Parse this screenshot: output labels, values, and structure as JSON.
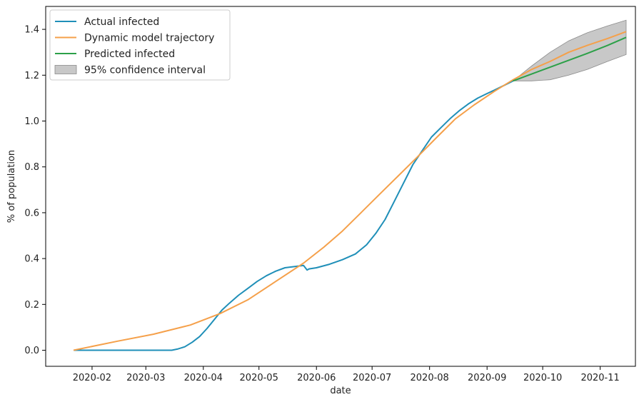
{
  "chart_data": {
    "type": "line",
    "xlabel": "date",
    "ylabel": "% of population",
    "xlim": [
      "2020-01-07",
      "2020-11-20"
    ],
    "ylim": [
      -0.07,
      1.5
    ],
    "grid": false,
    "legend_position": "top-left",
    "x_ticks": [
      "2020-02",
      "2020-03",
      "2020-04",
      "2020-05",
      "2020-06",
      "2020-07",
      "2020-08",
      "2020-09",
      "2020-10",
      "2020-11"
    ],
    "y_ticks": [
      "0.0",
      "0.2",
      "0.4",
      "0.6",
      "0.8",
      "1.0",
      "1.2",
      "1.4"
    ],
    "series": [
      {
        "name": "Actual infected",
        "color": "#1f8fb8",
        "x": [
          "2020-01-22",
          "2020-02-15",
          "2020-03-05",
          "2020-03-15",
          "2020-03-18",
          "2020-03-22",
          "2020-03-26",
          "2020-03-30",
          "2020-04-03",
          "2020-04-07",
          "2020-04-11",
          "2020-04-15",
          "2020-04-20",
          "2020-04-25",
          "2020-04-30",
          "2020-05-05",
          "2020-05-10",
          "2020-05-15",
          "2020-05-20",
          "2020-05-25",
          "2020-05-27",
          "2020-05-28",
          "2020-06-01",
          "2020-06-08",
          "2020-06-15",
          "2020-06-22",
          "2020-06-28",
          "2020-07-03",
          "2020-07-08",
          "2020-07-13",
          "2020-07-18",
          "2020-07-23",
          "2020-07-28",
          "2020-08-02",
          "2020-08-07",
          "2020-08-12",
          "2020-08-17",
          "2020-08-22",
          "2020-08-27",
          "2020-09-01",
          "2020-09-05",
          "2020-09-10",
          "2020-09-15"
        ],
        "y": [
          0.0,
          0.0,
          0.0,
          0.0,
          0.005,
          0.015,
          0.035,
          0.06,
          0.095,
          0.135,
          0.175,
          0.205,
          0.24,
          0.27,
          0.3,
          0.325,
          0.345,
          0.36,
          0.365,
          0.37,
          0.35,
          0.355,
          0.36,
          0.375,
          0.395,
          0.42,
          0.46,
          0.51,
          0.57,
          0.65,
          0.73,
          0.81,
          0.87,
          0.93,
          0.97,
          1.01,
          1.045,
          1.075,
          1.1,
          1.12,
          1.135,
          1.155,
          1.175
        ]
      },
      {
        "name": "Dynamic model trajectory",
        "color": "#f5a04a",
        "x": [
          "2020-01-22",
          "2020-02-15",
          "2020-03-05",
          "2020-03-25",
          "2020-04-10",
          "2020-04-25",
          "2020-05-10",
          "2020-05-25",
          "2020-06-05",
          "2020-06-15",
          "2020-06-25",
          "2020-07-05",
          "2020-07-15",
          "2020-07-25",
          "2020-08-05",
          "2020-08-15",
          "2020-08-25",
          "2020-09-05",
          "2020-09-15",
          "2020-09-25",
          "2020-10-05",
          "2020-10-15",
          "2020-10-25",
          "2020-11-05",
          "2020-11-15"
        ],
        "y": [
          0.0,
          0.04,
          0.07,
          0.11,
          0.16,
          0.22,
          0.3,
          0.38,
          0.45,
          0.52,
          0.6,
          0.68,
          0.76,
          0.84,
          0.93,
          1.01,
          1.07,
          1.13,
          1.18,
          1.225,
          1.26,
          1.3,
          1.33,
          1.36,
          1.39
        ]
      },
      {
        "name": "Predicted infected",
        "color": "#2ca048",
        "x": [
          "2020-09-15",
          "2020-09-25",
          "2020-10-05",
          "2020-10-15",
          "2020-10-25",
          "2020-11-05",
          "2020-11-15"
        ],
        "y": [
          1.175,
          1.205,
          1.235,
          1.265,
          1.295,
          1.33,
          1.365
        ]
      }
    ],
    "confidence_interval": {
      "name": "95% confidence interval",
      "color": "#b0b0b0",
      "x": [
        "2020-09-15",
        "2020-09-25",
        "2020-10-05",
        "2020-10-15",
        "2020-10-25",
        "2020-11-05",
        "2020-11-15"
      ],
      "lower": [
        1.175,
        1.175,
        1.18,
        1.2,
        1.225,
        1.26,
        1.29
      ],
      "upper": [
        1.175,
        1.24,
        1.3,
        1.35,
        1.385,
        1.415,
        1.44
      ]
    }
  }
}
